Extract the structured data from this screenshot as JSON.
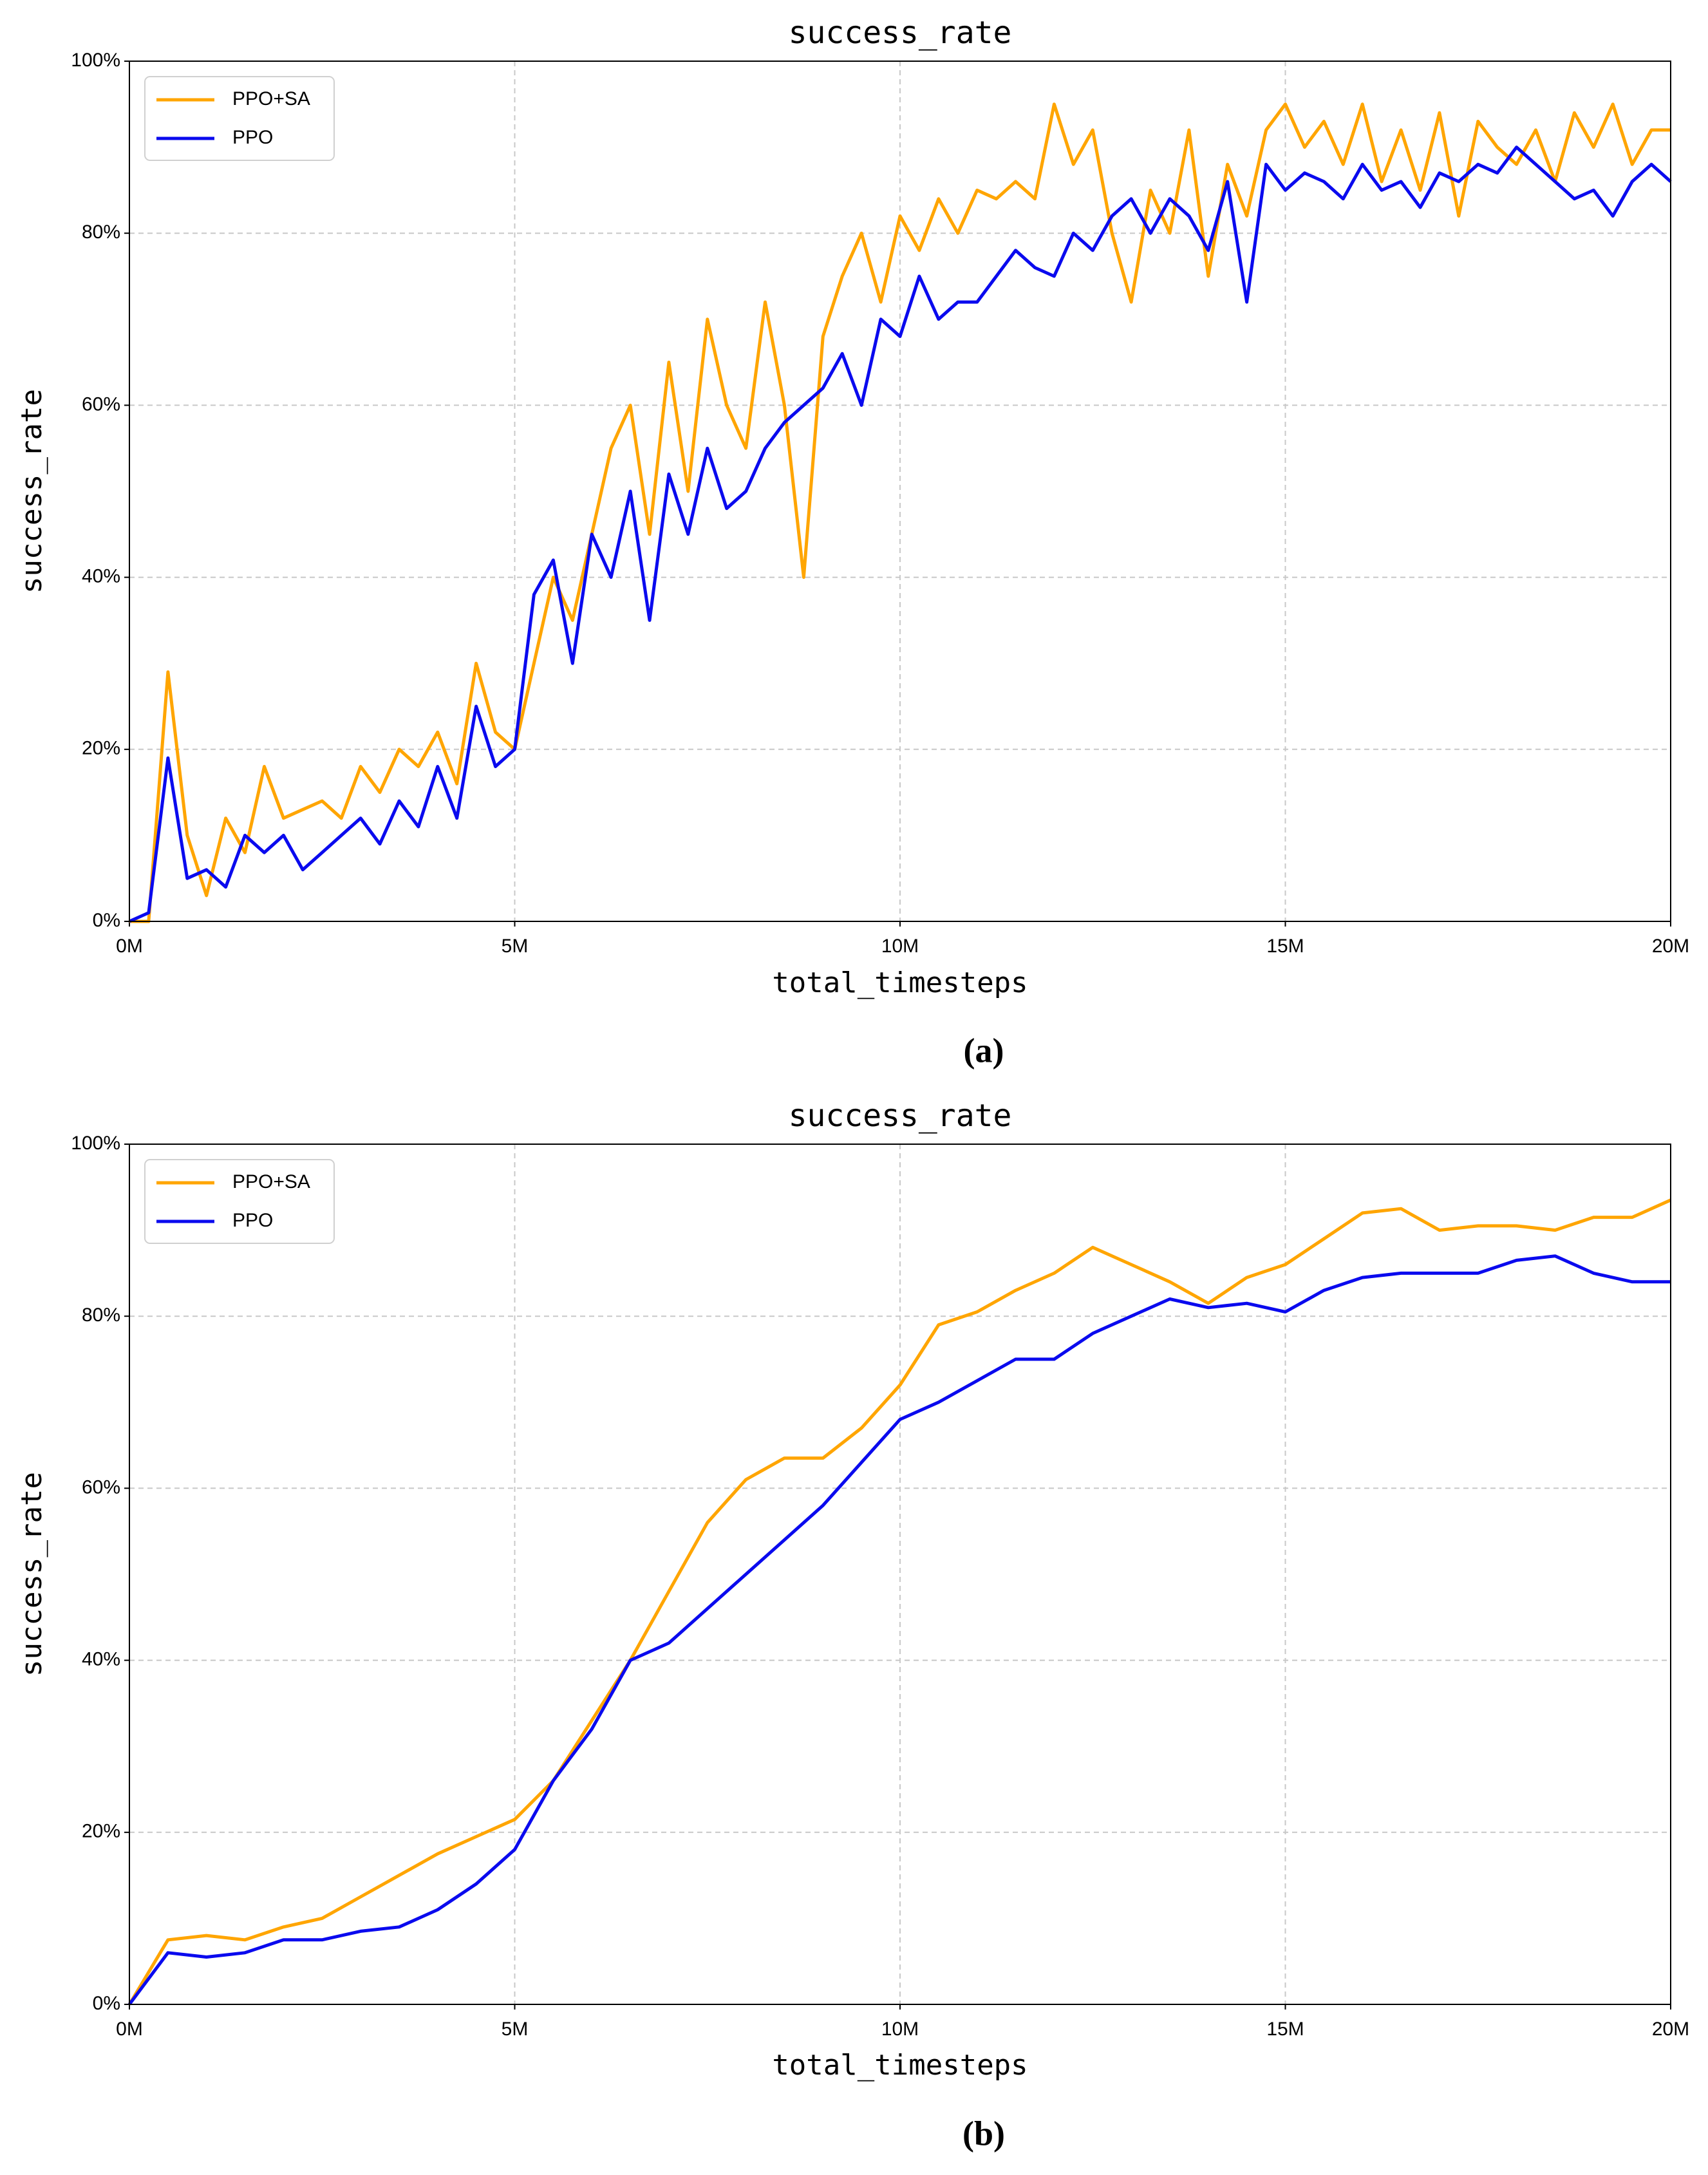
{
  "chart_data": [
    {
      "type": "line",
      "title": "success_rate",
      "xlabel": "total_timesteps",
      "ylabel": "success_rate",
      "caption": "(a)",
      "x": [
        0,
        0.25,
        0.5,
        0.75,
        1,
        1.25,
        1.5,
        1.75,
        2,
        2.25,
        2.5,
        2.75,
        3,
        3.25,
        3.5,
        3.75,
        4,
        4.25,
        4.5,
        4.75,
        5,
        5.25,
        5.5,
        5.75,
        6,
        6.25,
        6.5,
        6.75,
        7,
        7.25,
        7.5,
        7.75,
        8,
        8.25,
        8.5,
        8.75,
        9,
        9.25,
        9.5,
        9.75,
        10,
        10.25,
        10.5,
        10.75,
        11,
        11.25,
        11.5,
        11.75,
        12,
        12.25,
        12.5,
        12.75,
        13,
        13.25,
        13.5,
        13.75,
        14,
        14.25,
        14.5,
        14.75,
        15,
        15.25,
        15.5,
        15.75,
        16,
        16.25,
        16.5,
        16.75,
        17,
        17.25,
        17.5,
        17.75,
        18,
        18.25,
        18.5,
        18.75,
        19,
        19.25,
        19.5,
        19.75,
        20
      ],
      "series": [
        {
          "name": "PPO+SA",
          "color": "#ffa500",
          "values": [
            0,
            0,
            29,
            10,
            3,
            12,
            8,
            18,
            12,
            13,
            14,
            12,
            18,
            15,
            20,
            18,
            22,
            16,
            30,
            22,
            20,
            30,
            40,
            35,
            45,
            55,
            60,
            45,
            65,
            50,
            70,
            60,
            55,
            72,
            60,
            40,
            68,
            75,
            80,
            72,
            82,
            78,
            84,
            80,
            85,
            84,
            86,
            84,
            95,
            88,
            92,
            80,
            72,
            85,
            80,
            92,
            75,
            88,
            82,
            92,
            95,
            90,
            93,
            88,
            95,
            86,
            92,
            85,
            94,
            82,
            93,
            90,
            88,
            92,
            86,
            94,
            90,
            95,
            88,
            92,
            92
          ]
        },
        {
          "name": "PPO",
          "color": "#0a0aee",
          "values": [
            0,
            1,
            19,
            5,
            6,
            4,
            10,
            8,
            10,
            6,
            8,
            10,
            12,
            9,
            14,
            11,
            18,
            12,
            25,
            18,
            20,
            38,
            42,
            30,
            45,
            40,
            50,
            35,
            52,
            45,
            55,
            48,
            50,
            55,
            58,
            60,
            62,
            66,
            60,
            70,
            68,
            75,
            70,
            72,
            72,
            75,
            78,
            76,
            75,
            80,
            78,
            82,
            84,
            80,
            84,
            82,
            78,
            86,
            72,
            88,
            85,
            87,
            86,
            84,
            88,
            85,
            86,
            83,
            87,
            86,
            88,
            87,
            90,
            88,
            86,
            84,
            85,
            82,
            86,
            88,
            86
          ]
        }
      ],
      "xlim": [
        0,
        20
      ],
      "ylim": [
        0,
        100
      ],
      "xticks": [
        {
          "value": 0,
          "label": "0M"
        },
        {
          "value": 5,
          "label": "5M"
        },
        {
          "value": 10,
          "label": "10M"
        },
        {
          "value": 15,
          "label": "15M"
        },
        {
          "value": 20,
          "label": "20M"
        }
      ],
      "yticks": [
        {
          "value": 0,
          "label": "0%"
        },
        {
          "value": 20,
          "label": "20%"
        },
        {
          "value": 40,
          "label": "40%"
        },
        {
          "value": 60,
          "label": "60%"
        },
        {
          "value": 80,
          "label": "80%"
        },
        {
          "value": 100,
          "label": "100%"
        }
      ],
      "grid": true,
      "legend": "upper left"
    },
    {
      "type": "line",
      "title": "success_rate",
      "xlabel": "total_timesteps",
      "ylabel": "success_rate",
      "caption": "(b)",
      "x": [
        0,
        0.5,
        1,
        1.5,
        2,
        2.5,
        3,
        3.5,
        4,
        4.5,
        5,
        5.5,
        6,
        6.5,
        7,
        7.5,
        8,
        8.5,
        9,
        9.5,
        10,
        10.5,
        11,
        11.5,
        12,
        12.5,
        13,
        13.5,
        14,
        14.5,
        15,
        15.5,
        16,
        16.5,
        17,
        17.5,
        18,
        18.5,
        19,
        19.5,
        20
      ],
      "series": [
        {
          "name": "PPO+SA",
          "color": "#ffa500",
          "values": [
            0,
            7.5,
            8,
            7.5,
            9,
            10,
            12.5,
            15,
            17.5,
            19.5,
            21.5,
            26,
            33,
            40,
            48,
            56,
            61,
            63.5,
            63.5,
            67,
            72,
            79,
            80.5,
            83,
            85,
            88,
            86,
            84,
            81.5,
            84.5,
            86,
            89,
            92,
            92.5,
            90,
            90.5,
            90.5,
            90,
            91.5,
            91.5,
            93.5
          ]
        },
        {
          "name": "PPO",
          "color": "#0a0aee",
          "values": [
            0,
            6,
            5.5,
            6,
            7.5,
            7.5,
            8.5,
            9,
            11,
            14,
            18,
            26,
            32,
            40,
            42,
            46,
            50,
            54,
            58,
            63,
            68,
            70,
            72.5,
            75,
            75,
            78,
            80,
            82,
            81,
            81.5,
            80.5,
            83,
            84.5,
            85,
            85,
            85,
            86.5,
            87,
            85,
            84,
            84
          ]
        }
      ],
      "xlim": [
        0,
        20
      ],
      "ylim": [
        0,
        100
      ],
      "xticks": [
        {
          "value": 0,
          "label": "0M"
        },
        {
          "value": 5,
          "label": "5M"
        },
        {
          "value": 10,
          "label": "10M"
        },
        {
          "value": 15,
          "label": "15M"
        },
        {
          "value": 20,
          "label": "20M"
        }
      ],
      "yticks": [
        {
          "value": 0,
          "label": "0%"
        },
        {
          "value": 20,
          "label": "20%"
        },
        {
          "value": 40,
          "label": "40%"
        },
        {
          "value": 60,
          "label": "60%"
        },
        {
          "value": 80,
          "label": "80%"
        },
        {
          "value": 100,
          "label": "100%"
        }
      ],
      "grid": true,
      "legend": "upper left"
    }
  ]
}
